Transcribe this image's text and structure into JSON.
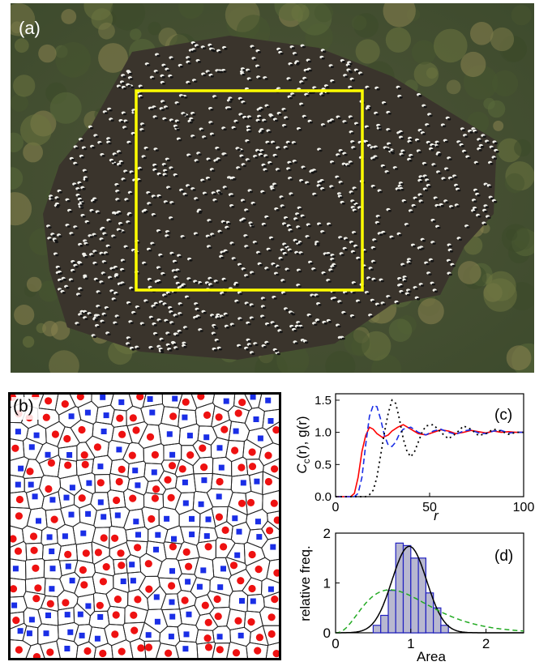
{
  "figure": {
    "panels": {
      "a": {
        "label": "(a)"
      },
      "b": {
        "label": "(b)"
      },
      "c": {
        "label": "(c)"
      },
      "d": {
        "label": "(d)"
      }
    },
    "colors": {
      "red_points": "#ee1111",
      "blue_points": "#1a2ee6",
      "highlight_box": "#ffff00",
      "hist_fill": "#b8b8d0",
      "hist_edge": "#2020c0",
      "green_dashed": "#22aa22"
    }
  },
  "chart_data": [
    {
      "type": "line",
      "panel": "c",
      "xlabel": "r",
      "ylabel_parts": [
        "C",
        "c",
        "(r), g(r)"
      ],
      "xlim": [
        0,
        100
      ],
      "ylim": [
        0,
        1.6
      ],
      "xticks": [
        "0",
        "50",
        "100"
      ],
      "yticks": [
        "0.0",
        "0.5",
        "1.0",
        "1.5"
      ],
      "xtick_values": [
        0,
        50,
        100
      ],
      "ytick_values": [
        0.0,
        0.5,
        1.0,
        1.5
      ],
      "series": [
        {
          "style": "solid",
          "color": "#ff0000",
          "x": [
            0,
            8,
            10,
            12,
            14,
            16,
            18,
            20,
            22,
            25,
            28,
            30,
            33,
            36,
            40,
            44,
            48,
            52,
            56,
            60,
            64,
            68,
            72,
            76,
            80,
            84,
            88,
            92,
            96,
            100
          ],
          "y": [
            0,
            0.0,
            0.05,
            0.3,
            0.7,
            0.95,
            1.08,
            1.05,
            0.98,
            0.92,
            0.96,
            1.02,
            1.08,
            1.12,
            1.05,
            0.98,
            0.96,
            1.0,
            1.04,
            1.02,
            0.98,
            1.0,
            1.03,
            1.01,
            0.99,
            1.02,
            1.0,
            1.01,
            1.0,
            1.0
          ]
        },
        {
          "style": "dashed",
          "color": "#1a2ee6",
          "x": [
            0,
            10,
            12,
            14,
            16,
            18,
            20,
            22,
            24,
            26,
            28,
            30,
            32,
            34,
            36,
            40,
            44,
            48,
            52,
            56,
            60,
            64,
            68,
            72,
            76,
            80,
            84,
            88,
            92,
            96,
            100
          ],
          "y": [
            0,
            0.0,
            0.05,
            0.3,
            0.8,
            1.25,
            1.42,
            1.4,
            1.2,
            0.95,
            0.8,
            0.78,
            0.85,
            0.98,
            1.05,
            1.08,
            1.0,
            0.96,
            1.02,
            1.05,
            1.0,
            0.97,
            1.02,
            1.04,
            0.99,
            0.98,
            1.02,
            1.03,
            0.99,
            1.0,
            1.0
          ]
        },
        {
          "style": "dotted",
          "color": "#000000",
          "x": [
            0,
            16,
            18,
            20,
            22,
            24,
            26,
            28,
            30,
            32,
            34,
            36,
            38,
            40,
            42,
            44,
            46,
            48,
            52,
            56,
            60,
            64,
            68,
            72,
            76,
            80,
            84,
            88,
            92,
            96,
            100
          ],
          "y": [
            0,
            0.0,
            0.03,
            0.1,
            0.3,
            0.65,
            1.0,
            1.3,
            1.5,
            1.45,
            1.2,
            0.9,
            0.7,
            0.62,
            0.7,
            0.85,
            1.0,
            1.1,
            1.12,
            1.0,
            0.9,
            0.98,
            1.1,
            1.05,
            0.95,
            0.98,
            1.05,
            1.02,
            0.97,
            1.0,
            1.0
          ]
        }
      ]
    },
    {
      "type": "bar",
      "panel": "d",
      "xlabel": "Area",
      "ylabel": "relative freq.",
      "xlim": [
        0,
        2.5
      ],
      "ylim": [
        0,
        2.0
      ],
      "xticks": [
        "0",
        "1",
        "2"
      ],
      "yticks": [
        "0",
        "1",
        "2"
      ],
      "xtick_values": [
        0,
        1,
        2
      ],
      "ytick_values": [
        0,
        1,
        2
      ],
      "bin_width": 0.1,
      "bin_starts": [
        0.5,
        0.6,
        0.7,
        0.8,
        0.9,
        1.0,
        1.1,
        1.2,
        1.3,
        1.4
      ],
      "values": [
        0.15,
        0.35,
        0.85,
        1.8,
        1.75,
        1.5,
        1.5,
        0.8,
        0.5,
        0.15
      ],
      "curves": [
        {
          "style": "solid",
          "color": "#000000",
          "kind": "gaussian",
          "mean": 0.98,
          "sd": 0.23
        },
        {
          "style": "dashed",
          "color": "#22aa22",
          "kind": "gamma",
          "shape": 3.6,
          "scale": 0.278
        }
      ]
    }
  ]
}
